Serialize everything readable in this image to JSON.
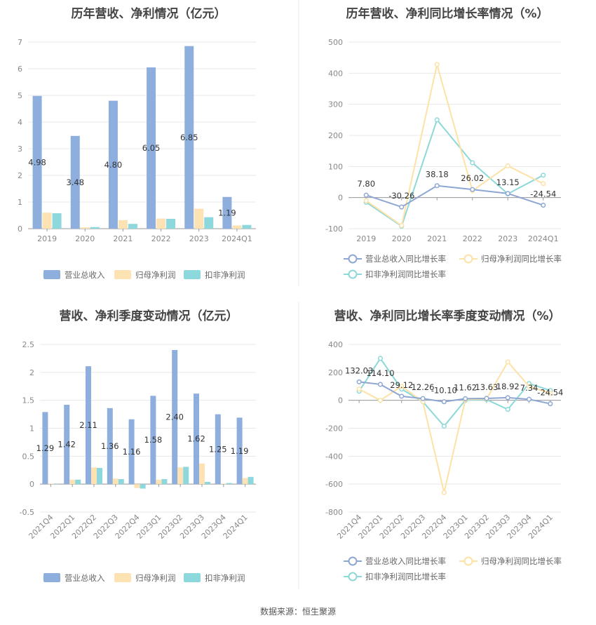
{
  "source_text": "数据来源：恒生聚源",
  "colors": {
    "revenue": "#8eaedd",
    "net_profit": "#fde2b4",
    "deducted_profit": "#8dd8dc",
    "revenue_yoy": "#8ea6d4",
    "net_profit_yoy": "#fde2a7",
    "deducted_profit_yoy": "#8dd8d8",
    "grid": "#e8e8e8",
    "axis": "#999999"
  },
  "chart_data": [
    {
      "type": "bar",
      "title": "历年营收、净利情况（亿元）",
      "categories": [
        "2019",
        "2020",
        "2021",
        "2022",
        "2023",
        "2024Q1"
      ],
      "ylim": [
        0,
        7
      ],
      "yticks": [
        0,
        1,
        2,
        3,
        4,
        5,
        6,
        7
      ],
      "series": [
        {
          "name": "营业总收入",
          "values": [
            4.98,
            3.48,
            4.8,
            6.05,
            6.85,
            1.19
          ],
          "labels": [
            "4.98",
            "3.48",
            "4.80",
            "6.05",
            "6.85",
            "1.19"
          ]
        },
        {
          "name": "归母净利润",
          "values": [
            0.6,
            0.05,
            0.32,
            0.38,
            0.75,
            0.12
          ]
        },
        {
          "name": "扣非净利润",
          "values": [
            0.58,
            0.06,
            0.18,
            0.37,
            0.43,
            0.14
          ]
        }
      ],
      "legend": "bottom",
      "grid": true
    },
    {
      "type": "line",
      "title": "历年营收、净利同比增长率情况（%）",
      "categories": [
        "2019",
        "2020",
        "2021",
        "2022",
        "2023",
        "2024Q1"
      ],
      "ylim": [
        -100,
        500
      ],
      "yticks": [
        -100,
        0,
        100,
        200,
        300,
        400,
        500
      ],
      "series": [
        {
          "name": "营业总收入同比增长率",
          "values": [
            7.8,
            -30.26,
            38.18,
            26.02,
            13.15,
            -24.54
          ],
          "labels": [
            "7.80",
            "-30.26",
            "38.18",
            "26.02",
            "13.15",
            "-24.54"
          ]
        },
        {
          "name": "归母净利润同比增长率",
          "values": [
            -10,
            -90,
            428,
            22,
            102,
            45
          ]
        },
        {
          "name": "扣非净利润同比增长率",
          "values": [
            -15,
            -92,
            250,
            112,
            12,
            72
          ]
        }
      ],
      "legend": "bottom",
      "grid": true
    },
    {
      "type": "bar",
      "title": "营收、净利季度变动情况（亿元）",
      "categories": [
        "2021Q4",
        "2022Q1",
        "2022Q2",
        "2022Q3",
        "2022Q4",
        "2023Q1",
        "2023Q2",
        "2023Q3",
        "2023Q4",
        "2024Q1"
      ],
      "ylim": [
        -0.5,
        2.5
      ],
      "yticks": [
        -0.5,
        0,
        0.5,
        1,
        1.5,
        2,
        2.5
      ],
      "series": [
        {
          "name": "营业总收入",
          "values": [
            1.29,
            1.42,
            2.11,
            1.36,
            1.16,
            1.58,
            2.4,
            1.62,
            1.25,
            1.19
          ],
          "labels": [
            "1.29",
            "1.42",
            "2.11",
            "1.36",
            "1.16",
            "1.58",
            "2.40",
            "1.62",
            "1.25",
            "1.19"
          ]
        },
        {
          "name": "归母净利润",
          "values": [
            0.01,
            0.08,
            0.3,
            0.1,
            -0.07,
            0.08,
            0.3,
            0.37,
            0.01,
            0.11
          ]
        },
        {
          "name": "扣非净利润",
          "values": [
            0.0,
            0.08,
            0.29,
            0.09,
            -0.08,
            0.09,
            0.31,
            0.04,
            0.02,
            0.13
          ]
        }
      ],
      "legend": "bottom",
      "grid": true
    },
    {
      "type": "line",
      "title": "营收、净利同比增长率季度变动情况（%）",
      "categories": [
        "2021Q4",
        "2022Q1",
        "2022Q2",
        "2022Q3",
        "2022Q4",
        "2023Q1",
        "2023Q2",
        "2023Q3",
        "2023Q4",
        "2024Q1"
      ],
      "ylim": [
        -800,
        400
      ],
      "yticks": [
        -800,
        -600,
        -400,
        -200,
        0,
        200,
        400
      ],
      "series": [
        {
          "name": "营业总收入同比增长率",
          "values": [
            132.03,
            114.1,
            29.12,
            12.26,
            -10.1,
            11.62,
            13.63,
            18.92,
            7.34,
            -24.54
          ],
          "labels": [
            "132.03",
            "114.10",
            "29.12",
            "12.26",
            "-10.10",
            "11.62",
            "13.63",
            "18.92",
            "7.34",
            "-24.54"
          ]
        },
        {
          "name": "归母净利润同比增长率",
          "values": [
            80,
            0,
            100,
            -10,
            -660,
            5,
            10,
            275,
            100,
            50
          ]
        },
        {
          "name": "扣非净利润同比增长率",
          "values": [
            65,
            300,
            80,
            -10,
            -185,
            0,
            5,
            -65,
            120,
            70
          ]
        }
      ],
      "legend": "bottom",
      "grid": true
    }
  ]
}
